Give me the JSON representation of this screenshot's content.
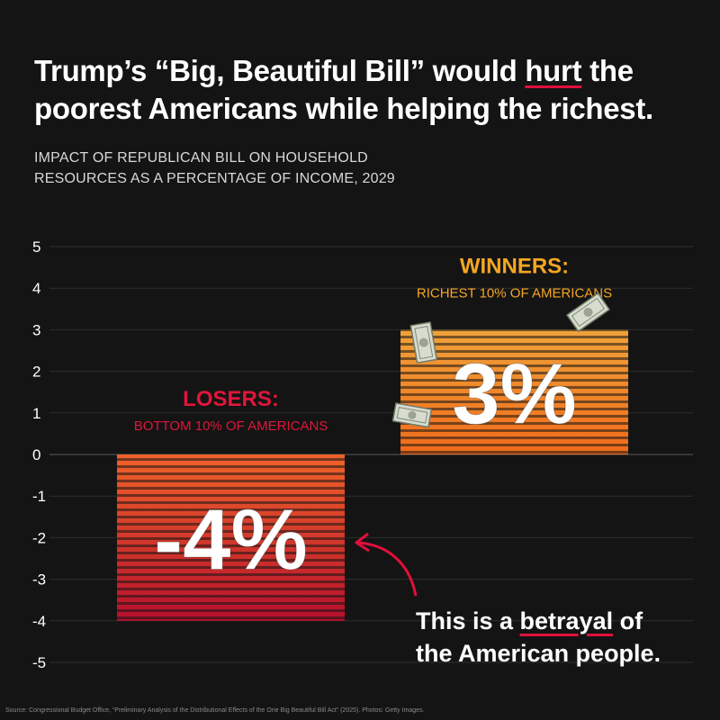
{
  "headline": {
    "line1_a": "Trump’s “Big, Beautiful Bill” would ",
    "line1_em": "hurt",
    "line1_b": " the",
    "line2": "poorest Americans while helping the richest."
  },
  "subtitle": {
    "line1": "IMPACT OF REPUBLICAN BILL ON HOUSEHOLD",
    "line2": "RESOURCES AS A PERCENTAGE OF INCOME, 2029"
  },
  "chart_data": {
    "type": "bar",
    "title": "",
    "xlabel": "",
    "ylabel": "",
    "ylim": [
      -5,
      5
    ],
    "yticks": [
      5,
      4,
      3,
      2,
      1,
      0,
      -1,
      -2,
      -3,
      -4,
      -5
    ],
    "grid": true,
    "categories": [
      "Bottom 10% of Americans",
      "Richest 10% of Americans"
    ],
    "values": [
      -4,
      3
    ],
    "labels": [
      {
        "title": "LOSERS:",
        "subtitle": "BOTTOM 10% OF AMERICANS",
        "value_text": "-4%",
        "color": "#e0163a"
      },
      {
        "title": "WINNERS:",
        "subtitle": "RICHEST 10% OF AMERICANS",
        "value_text": "3%",
        "color": "#f5a623"
      }
    ]
  },
  "colors": {
    "background": "#141414",
    "loser_bar_top": "#f0622a",
    "loser_bar_bottom": "#b5102c",
    "winner_bar_top": "#f0a23a",
    "winner_bar_bottom": "#f06a1a",
    "accent_red": "#e0103a"
  },
  "callout": {
    "line1_a": "This is a ",
    "line1_em": "betrayal",
    "line1_b": " of",
    "line2": "the American people."
  },
  "decorations": [
    "money-bill-icon",
    "money-bill-icon",
    "money-bill-icon",
    "curved-arrow-icon"
  ],
  "source": "Source: Congressional Budget Office, “Preliminary Analysis of the Distributional Effects of the One Big Beautiful Bill Act” (2025). Photos: Getty Images."
}
